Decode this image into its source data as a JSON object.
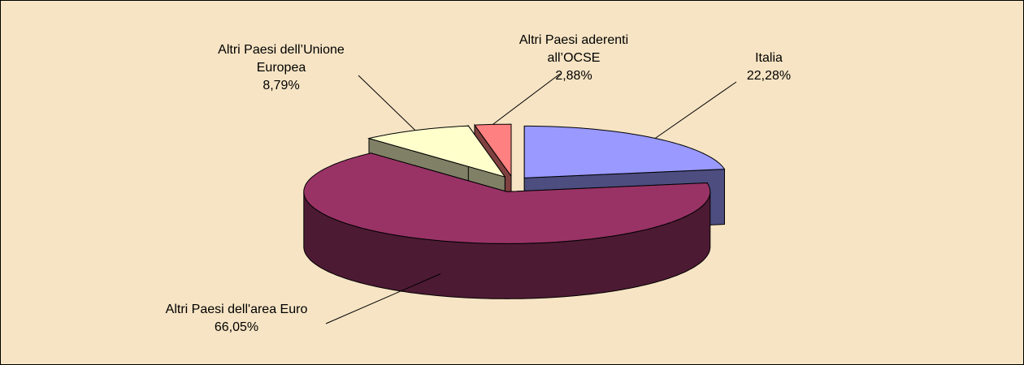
{
  "chart_data": {
    "type": "pie",
    "categories": [
      "Italia",
      "Altri Paesi dell'area Euro",
      "Altri Paesi dell’Unione Europea",
      "Altri Paesi aderenti all’OCSE"
    ],
    "values": [
      22.28,
      66.05,
      8.79,
      2.88
    ],
    "value_labels": [
      "22,28%",
      "66,05%",
      "8,79%",
      "2,88%"
    ],
    "colors": [
      "#9999ff",
      "#993366",
      "#ffffcc",
      "#ff8080"
    ]
  }
}
